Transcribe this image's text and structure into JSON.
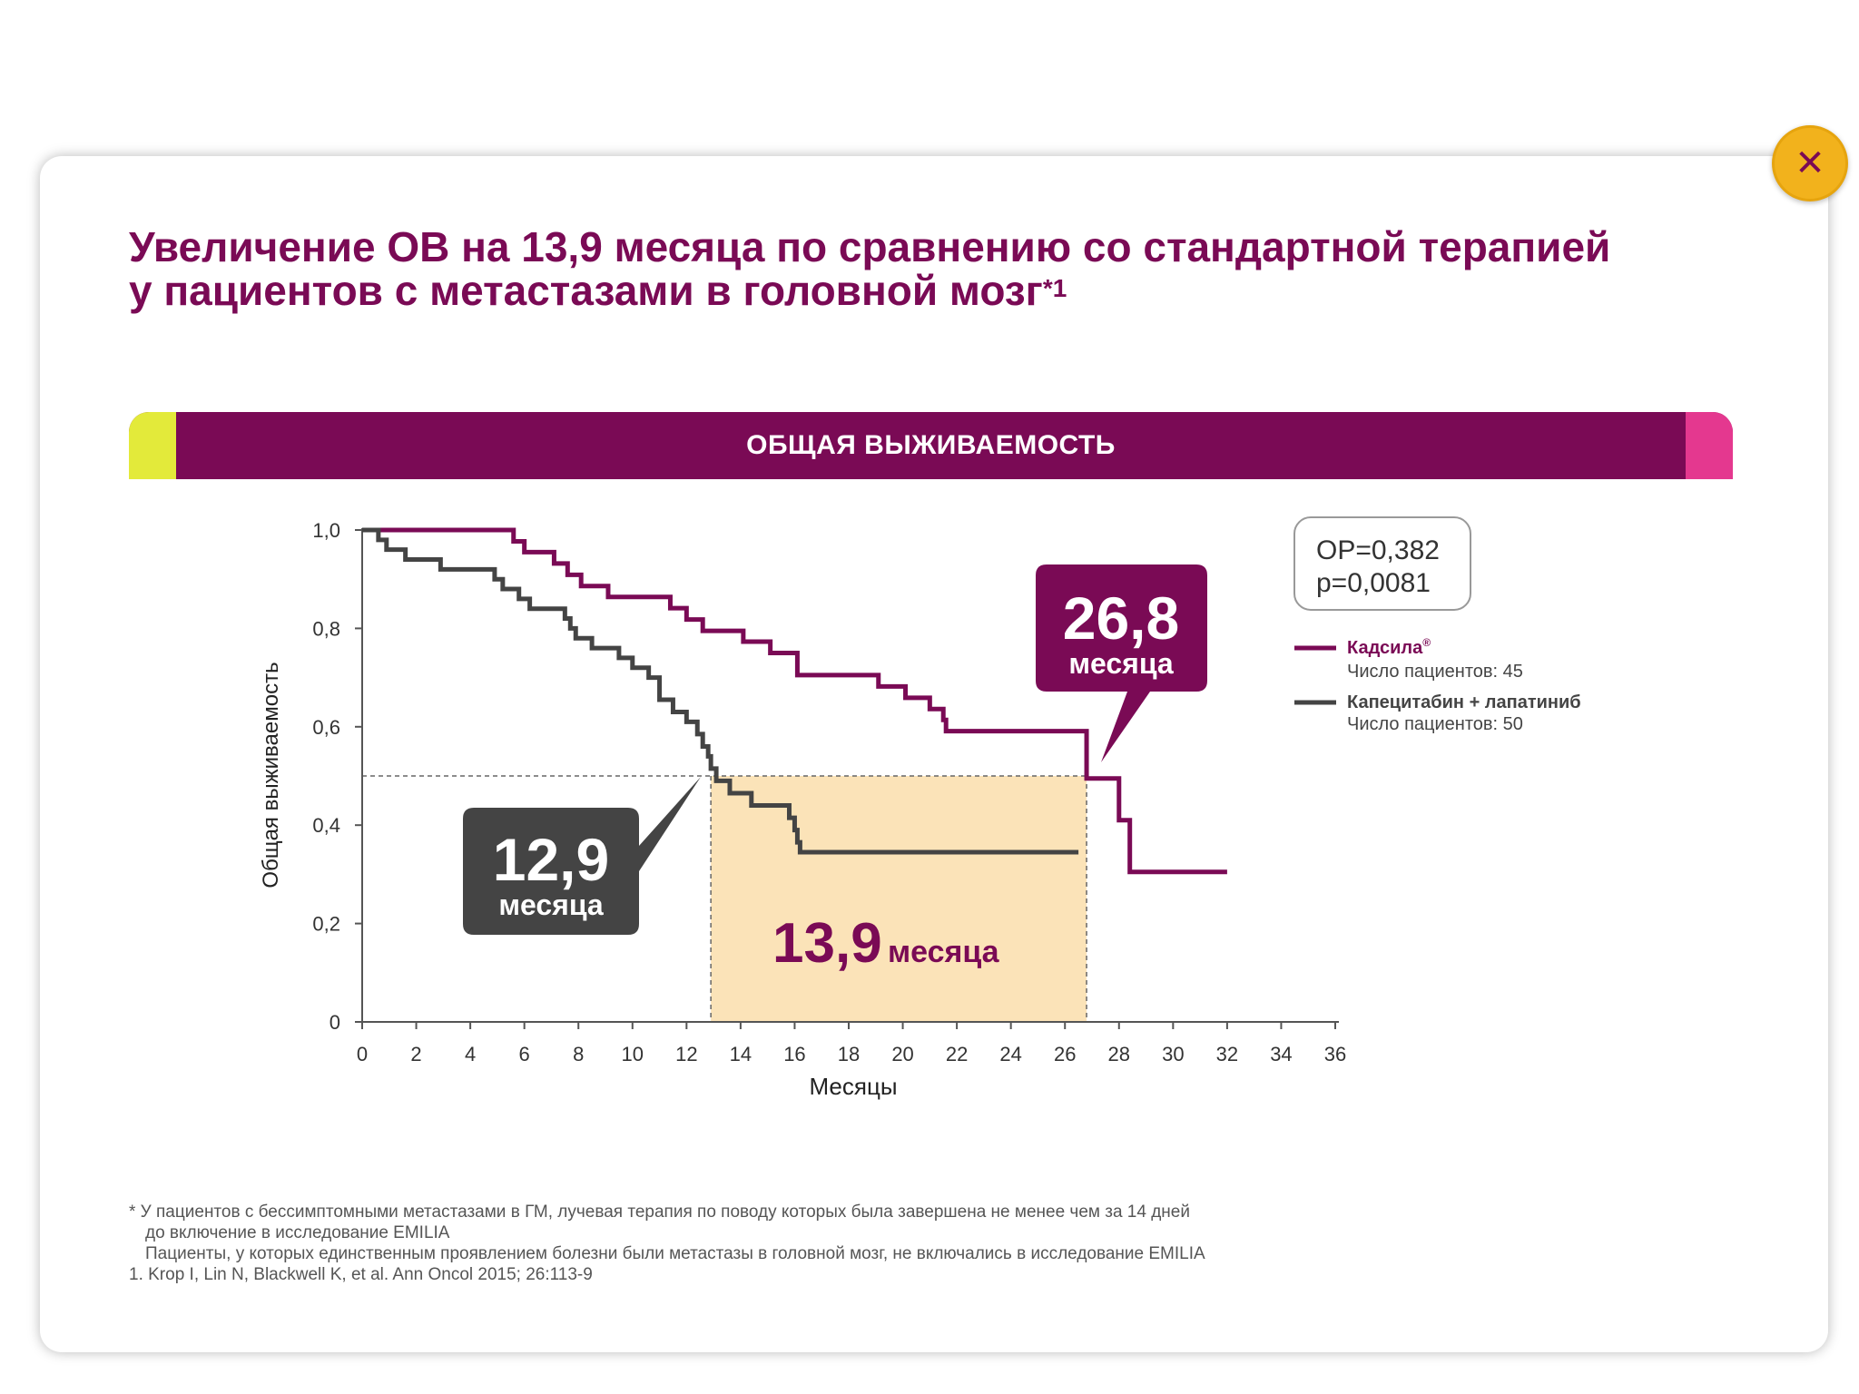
{
  "close_button": {
    "icon": "close-icon",
    "glyph": "✕"
  },
  "title": {
    "line1": "Увеличение ОВ на 13,9 месяца по сравнению со стандартной терапией",
    "line2": "у пациентов с метастазами в головной мозг",
    "superscript": "*1"
  },
  "band": {
    "label": "ОБЩАЯ ВЫЖИВАЕМОСТЬ"
  },
  "colors": {
    "kadcyla": "#7a0a55",
    "comparator": "#444444",
    "highlight": "#fbe3b8",
    "accent_yellow": "#e3ea3a",
    "accent_pink": "#e4388f",
    "close": "#f2b21c"
  },
  "stats": {
    "hr": "ОР=0,382",
    "p": "p=0,0081"
  },
  "callouts": {
    "kadcyla": {
      "value": "26,8",
      "unit": "месяца"
    },
    "comparator": {
      "value": "12,9",
      "unit": "месяца"
    },
    "difference": {
      "value": "13,9",
      "unit": "месяца"
    }
  },
  "legend": [
    {
      "name": "Кадсила",
      "mark": "®",
      "patients": "Число пациентов: 45"
    },
    {
      "name": "Капецитабин + лапатиниб",
      "mark": "",
      "patients": "Число пациентов: 50"
    }
  ],
  "chart_data": {
    "type": "line",
    "step": true,
    "xlabel": "Месяцы",
    "ylabel": "Общая выживаемость",
    "xlim": [
      0,
      36
    ],
    "ylim": [
      0,
      1.0
    ],
    "x_ticks": [
      "0",
      "2",
      "4",
      "6",
      "8",
      "10",
      "12",
      "14",
      "16",
      "18",
      "20",
      "22",
      "24",
      "26",
      "28",
      "30",
      "32",
      "34",
      "36"
    ],
    "y_ticks": [
      "0",
      "0,2",
      "0,4",
      "0,6",
      "0,8",
      "1,0"
    ],
    "grid": false,
    "median_y": 0.5,
    "medians": {
      "Кадсила": 26.8,
      "Капецитабин + лапатиниб": 12.9
    },
    "series": [
      {
        "name": "Кадсила",
        "points": [
          [
            0,
            1.0
          ],
          [
            5.1,
            1.0
          ],
          [
            5.6,
            0.977
          ],
          [
            6.0,
            0.955
          ],
          [
            7.1,
            0.932
          ],
          [
            7.6,
            0.909
          ],
          [
            8.1,
            0.886
          ],
          [
            9.1,
            0.864
          ],
          [
            11.4,
            0.841
          ],
          [
            12.0,
            0.818
          ],
          [
            12.6,
            0.795
          ],
          [
            14.1,
            0.773
          ],
          [
            15.1,
            0.75
          ],
          [
            16.1,
            0.705
          ],
          [
            19.1,
            0.682
          ],
          [
            20.1,
            0.659
          ],
          [
            21.0,
            0.636
          ],
          [
            21.5,
            0.614
          ],
          [
            21.6,
            0.591
          ],
          [
            26.8,
            0.591
          ],
          [
            26.8,
            0.495
          ],
          [
            28.0,
            0.495
          ],
          [
            28.0,
            0.41
          ],
          [
            28.4,
            0.41
          ],
          [
            28.4,
            0.305
          ],
          [
            32.0,
            0.305
          ]
        ]
      },
      {
        "name": "Капецитабин + лапатиниб",
        "points": [
          [
            0,
            1.0
          ],
          [
            0.6,
            0.98
          ],
          [
            0.9,
            0.96
          ],
          [
            1.6,
            0.96
          ],
          [
            1.6,
            0.94
          ],
          [
            2.9,
            0.94
          ],
          [
            2.9,
            0.92
          ],
          [
            4.9,
            0.92
          ],
          [
            4.9,
            0.9
          ],
          [
            5.2,
            0.9
          ],
          [
            5.2,
            0.88
          ],
          [
            5.8,
            0.88
          ],
          [
            5.8,
            0.86
          ],
          [
            6.2,
            0.86
          ],
          [
            6.2,
            0.84
          ],
          [
            7.5,
            0.84
          ],
          [
            7.5,
            0.82
          ],
          [
            7.7,
            0.82
          ],
          [
            7.7,
            0.8
          ],
          [
            7.9,
            0.8
          ],
          [
            7.9,
            0.78
          ],
          [
            8.5,
            0.78
          ],
          [
            8.5,
            0.76
          ],
          [
            9.5,
            0.76
          ],
          [
            9.5,
            0.74
          ],
          [
            10.0,
            0.74
          ],
          [
            10.0,
            0.72
          ],
          [
            10.6,
            0.72
          ],
          [
            10.6,
            0.7
          ],
          [
            11.0,
            0.7
          ],
          [
            11.0,
            0.655
          ],
          [
            11.5,
            0.655
          ],
          [
            11.5,
            0.63
          ],
          [
            12.0,
            0.63
          ],
          [
            12.0,
            0.61
          ],
          [
            12.4,
            0.61
          ],
          [
            12.4,
            0.585
          ],
          [
            12.6,
            0.585
          ],
          [
            12.6,
            0.56
          ],
          [
            12.8,
            0.56
          ],
          [
            12.8,
            0.54
          ],
          [
            12.9,
            0.54
          ],
          [
            12.9,
            0.515
          ],
          [
            13.1,
            0.515
          ],
          [
            13.1,
            0.49
          ],
          [
            13.6,
            0.49
          ],
          [
            13.6,
            0.465
          ],
          [
            14.4,
            0.465
          ],
          [
            14.4,
            0.44
          ],
          [
            15.8,
            0.44
          ],
          [
            15.8,
            0.415
          ],
          [
            16.0,
            0.415
          ],
          [
            16.0,
            0.39
          ],
          [
            16.1,
            0.39
          ],
          [
            16.1,
            0.365
          ],
          [
            16.2,
            0.365
          ],
          [
            16.2,
            0.345
          ],
          [
            26.5,
            0.345
          ]
        ]
      }
    ]
  },
  "footnotes": [
    "* У пациентов с бессимптомными метастазами в ГМ, лучевая терапия по поводу которых была завершена не менее чем за 14 дней",
    "до включение в исследование EMILIA",
    "Пациенты, у которых единственным проявлением болезни были метастазы в головной мозг, не включались в исследование EMILIA",
    "1. Krop I, Lin N, Blackwell K, et al. Ann Oncol 2015; 26:113-9"
  ]
}
